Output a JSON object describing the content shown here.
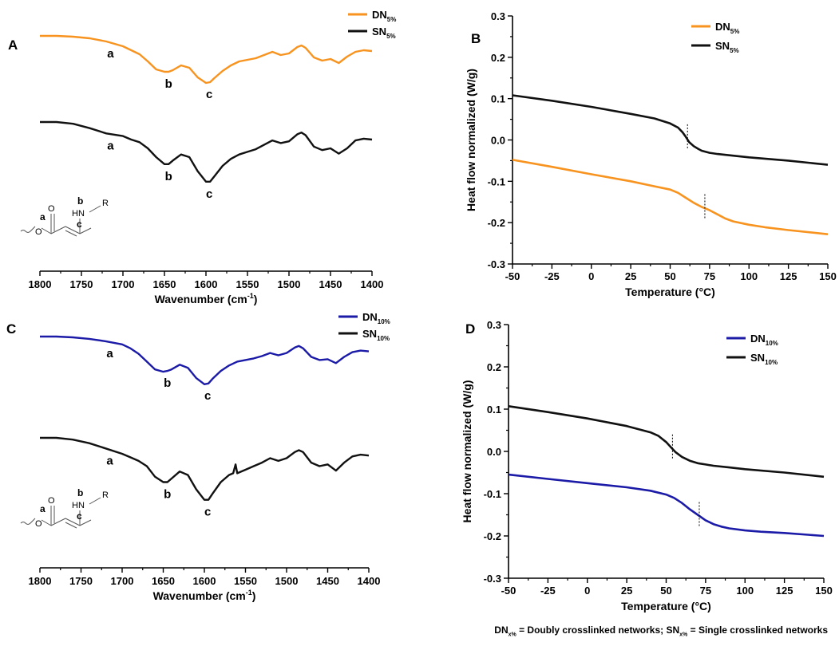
{
  "colors": {
    "orange": "#F7931E",
    "black": "#111111",
    "blue": "#1B1BA8"
  },
  "footnote": {
    "dn_label": "DN",
    "dn_sub": "x%",
    "dn_text": " = Doubly crosslinked networks; ",
    "sn_label": "SN",
    "sn_sub": "x%",
    "sn_text": " = Single crosslinked networks"
  },
  "chart_data": [
    {
      "panel": "A",
      "type": "line",
      "xlabel": "Wavenumber (cm",
      "xlabel_sup": "-1",
      "xlabel_end": ")",
      "x_reversed": true,
      "xlim": [
        1800,
        1400
      ],
      "xticks": [
        "1800",
        "1750",
        "1700",
        "1650",
        "1600",
        "1550",
        "1500",
        "1450",
        "1400"
      ],
      "ylabel": "",
      "legend": {
        "position": "top-right"
      },
      "series": [
        {
          "name": "DN",
          "sub": "5%",
          "color_key": "orange",
          "offset": 1,
          "x": [
            1800,
            1780,
            1760,
            1740,
            1720,
            1700,
            1690,
            1680,
            1670,
            1660,
            1650,
            1645,
            1640,
            1630,
            1620,
            1610,
            1600,
            1595,
            1590,
            1580,
            1570,
            1560,
            1550,
            1540,
            1530,
            1520,
            1510,
            1500,
            1490,
            1485,
            1480,
            1470,
            1460,
            1450,
            1440,
            1430,
            1420,
            1410,
            1400
          ],
          "y": [
            1.0,
            1.0,
            0.99,
            0.97,
            0.93,
            0.87,
            0.82,
            0.77,
            0.68,
            0.58,
            0.55,
            0.55,
            0.57,
            0.63,
            0.6,
            0.48,
            0.41,
            0.42,
            0.47,
            0.56,
            0.63,
            0.68,
            0.7,
            0.72,
            0.76,
            0.8,
            0.76,
            0.78,
            0.86,
            0.88,
            0.85,
            0.73,
            0.69,
            0.71,
            0.66,
            0.74,
            0.8,
            0.82,
            0.81
          ]
        },
        {
          "name": "SN",
          "sub": "5%",
          "color_key": "black",
          "offset": 0,
          "x": [
            1800,
            1780,
            1760,
            1740,
            1720,
            1700,
            1690,
            1680,
            1670,
            1660,
            1650,
            1645,
            1640,
            1630,
            1620,
            1610,
            1600,
            1595,
            1590,
            1580,
            1570,
            1560,
            1550,
            1540,
            1530,
            1520,
            1510,
            1500,
            1490,
            1485,
            1480,
            1470,
            1460,
            1450,
            1440,
            1430,
            1420,
            1410,
            1400
          ],
          "y": [
            1.0,
            1.0,
            0.98,
            0.93,
            0.87,
            0.84,
            0.8,
            0.77,
            0.7,
            0.6,
            0.52,
            0.52,
            0.56,
            0.63,
            0.6,
            0.44,
            0.32,
            0.32,
            0.38,
            0.5,
            0.58,
            0.63,
            0.66,
            0.69,
            0.74,
            0.79,
            0.76,
            0.78,
            0.86,
            0.88,
            0.85,
            0.72,
            0.68,
            0.7,
            0.64,
            0.7,
            0.79,
            0.81,
            0.8
          ]
        }
      ],
      "annotations": [
        {
          "text": "a",
          "series": "DN",
          "x": 1715
        },
        {
          "text": "b",
          "series": "DN",
          "x": 1645
        },
        {
          "text": "c",
          "series": "DN",
          "x": 1596
        },
        {
          "text": "a",
          "series": "SN",
          "x": 1715
        },
        {
          "text": "b",
          "series": "SN",
          "x": 1645
        },
        {
          "text": "c",
          "series": "SN",
          "x": 1596
        }
      ],
      "structure_labels": {
        "a": "a",
        "b": "b",
        "c": "c",
        "hn": "HN",
        "r": "R",
        "o": "O"
      }
    },
    {
      "panel": "B",
      "type": "line",
      "xlabel": "Temperature (°C)",
      "ylabel": "Heat flow normalized (W/g)",
      "xlim": [
        -50,
        150
      ],
      "ylim": [
        -0.3,
        0.3
      ],
      "xticks": [
        "-50",
        "-25",
        "0",
        "25",
        "50",
        "75",
        "100",
        "125",
        "150"
      ],
      "yticks": [
        "-0.3",
        "-0.2",
        "-0.1",
        "0.0",
        "0.1",
        "0.2",
        "0.3"
      ],
      "legend": {
        "position": "top-center"
      },
      "series": [
        {
          "name": "DN",
          "sub": "5%",
          "color_key": "orange",
          "x": [
            -50,
            -25,
            0,
            25,
            40,
            50,
            55,
            60,
            65,
            70,
            75,
            80,
            85,
            90,
            100,
            110,
            125,
            150
          ],
          "y": [
            -0.048,
            -0.065,
            -0.083,
            -0.1,
            -0.112,
            -0.12,
            -0.128,
            -0.14,
            -0.152,
            -0.162,
            -0.17,
            -0.18,
            -0.19,
            -0.197,
            -0.205,
            -0.211,
            -0.218,
            -0.228
          ]
        },
        {
          "name": "SN",
          "sub": "5%",
          "color_key": "black",
          "x": [
            -50,
            -25,
            0,
            25,
            40,
            50,
            55,
            58,
            60,
            62,
            65,
            68,
            70,
            75,
            80,
            90,
            100,
            125,
            150
          ],
          "y": [
            0.108,
            0.095,
            0.08,
            0.063,
            0.052,
            0.04,
            0.03,
            0.018,
            0.007,
            -0.005,
            -0.015,
            -0.022,
            -0.026,
            -0.031,
            -0.034,
            -0.038,
            -0.042,
            -0.05,
            -0.06
          ]
        }
      ],
      "tg_markers": [
        {
          "series": "SN",
          "x": 61
        },
        {
          "series": "DN",
          "x": 72
        }
      ]
    },
    {
      "panel": "C",
      "type": "line",
      "xlabel": "Wavenumber (cm",
      "xlabel_sup": "-1",
      "xlabel_end": ")",
      "x_reversed": true,
      "xlim": [
        1800,
        1400
      ],
      "xticks": [
        "1800",
        "1750",
        "1700",
        "1650",
        "1600",
        "1550",
        "1500",
        "1450",
        "1400"
      ],
      "ylabel": "",
      "legend": {
        "position": "top-right"
      },
      "series": [
        {
          "name": "DN",
          "sub": "10%",
          "color_key": "blue",
          "offset": 1,
          "x": [
            1800,
            1780,
            1760,
            1740,
            1720,
            1700,
            1690,
            1680,
            1670,
            1660,
            1650,
            1645,
            1640,
            1630,
            1620,
            1610,
            1600,
            1595,
            1590,
            1580,
            1570,
            1560,
            1550,
            1540,
            1530,
            1520,
            1510,
            1500,
            1490,
            1485,
            1480,
            1470,
            1460,
            1450,
            1440,
            1430,
            1420,
            1410,
            1400
          ],
          "y": [
            1.0,
            1.0,
            0.99,
            0.97,
            0.94,
            0.9,
            0.85,
            0.78,
            0.68,
            0.58,
            0.55,
            0.56,
            0.58,
            0.64,
            0.6,
            0.47,
            0.39,
            0.4,
            0.46,
            0.56,
            0.63,
            0.68,
            0.7,
            0.72,
            0.75,
            0.79,
            0.76,
            0.79,
            0.86,
            0.88,
            0.85,
            0.74,
            0.7,
            0.71,
            0.66,
            0.74,
            0.8,
            0.82,
            0.81
          ]
        },
        {
          "name": "SN",
          "sub": "10%",
          "color_key": "black",
          "offset": 0,
          "x": [
            1800,
            1780,
            1760,
            1740,
            1720,
            1700,
            1690,
            1680,
            1670,
            1660,
            1650,
            1645,
            1640,
            1630,
            1620,
            1610,
            1600,
            1595,
            1590,
            1580,
            1570,
            1565,
            1562,
            1560,
            1550,
            1540,
            1530,
            1520,
            1510,
            1500,
            1490,
            1485,
            1480,
            1470,
            1460,
            1450,
            1440,
            1430,
            1420,
            1410,
            1400
          ],
          "y": [
            1.0,
            1.0,
            0.98,
            0.94,
            0.88,
            0.82,
            0.78,
            0.74,
            0.68,
            0.56,
            0.5,
            0.5,
            0.54,
            0.62,
            0.58,
            0.42,
            0.3,
            0.3,
            0.37,
            0.5,
            0.58,
            0.6,
            0.7,
            0.6,
            0.64,
            0.68,
            0.72,
            0.77,
            0.74,
            0.77,
            0.84,
            0.86,
            0.84,
            0.72,
            0.68,
            0.7,
            0.63,
            0.72,
            0.79,
            0.81,
            0.8
          ]
        }
      ],
      "annotations": [
        {
          "text": "a",
          "series": "DN",
          "x": 1715
        },
        {
          "text": "b",
          "series": "DN",
          "x": 1645
        },
        {
          "text": "c",
          "series": "DN",
          "x": 1596
        },
        {
          "text": "a",
          "series": "SN",
          "x": 1715
        },
        {
          "text": "b",
          "series": "SN",
          "x": 1645
        },
        {
          "text": "c",
          "series": "SN",
          "x": 1596
        }
      ],
      "structure_labels": {
        "a": "a",
        "b": "b",
        "c": "c",
        "hn": "HN",
        "r": "R",
        "o": "O"
      }
    },
    {
      "panel": "D",
      "type": "line",
      "xlabel": "Temperature (°C)",
      "ylabel": "Heat flow normalized (W/g)",
      "xlim": [
        -50,
        150
      ],
      "ylim": [
        -0.3,
        0.3
      ],
      "xticks": [
        "-50",
        "-25",
        "0",
        "25",
        "50",
        "75",
        "100",
        "125",
        "150"
      ],
      "yticks": [
        "-0.3",
        "-0.2",
        "-0.1",
        "0.0",
        "0.1",
        "0.2",
        "0.3"
      ],
      "legend": {
        "position": "top-right"
      },
      "series": [
        {
          "name": "DN",
          "sub": "10%",
          "color_key": "blue",
          "x": [
            -50,
            -25,
            0,
            25,
            40,
            50,
            55,
            60,
            65,
            70,
            75,
            80,
            85,
            90,
            100,
            110,
            125,
            150
          ],
          "y": [
            -0.055,
            -0.065,
            -0.075,
            -0.085,
            -0.093,
            -0.102,
            -0.11,
            -0.122,
            -0.137,
            -0.15,
            -0.163,
            -0.172,
            -0.178,
            -0.182,
            -0.187,
            -0.19,
            -0.193,
            -0.2
          ]
        },
        {
          "name": "SN",
          "sub": "10%",
          "color_key": "black",
          "x": [
            -50,
            -25,
            0,
            25,
            40,
            45,
            50,
            53,
            56,
            60,
            65,
            70,
            75,
            80,
            90,
            100,
            125,
            150
          ],
          "y": [
            0.107,
            0.093,
            0.078,
            0.06,
            0.045,
            0.037,
            0.022,
            0.01,
            -0.002,
            -0.013,
            -0.022,
            -0.028,
            -0.031,
            -0.034,
            -0.038,
            -0.042,
            -0.05,
            -0.06
          ]
        }
      ],
      "tg_markers": [
        {
          "series": "SN",
          "x": 54
        },
        {
          "series": "DN",
          "x": 71
        }
      ]
    }
  ]
}
